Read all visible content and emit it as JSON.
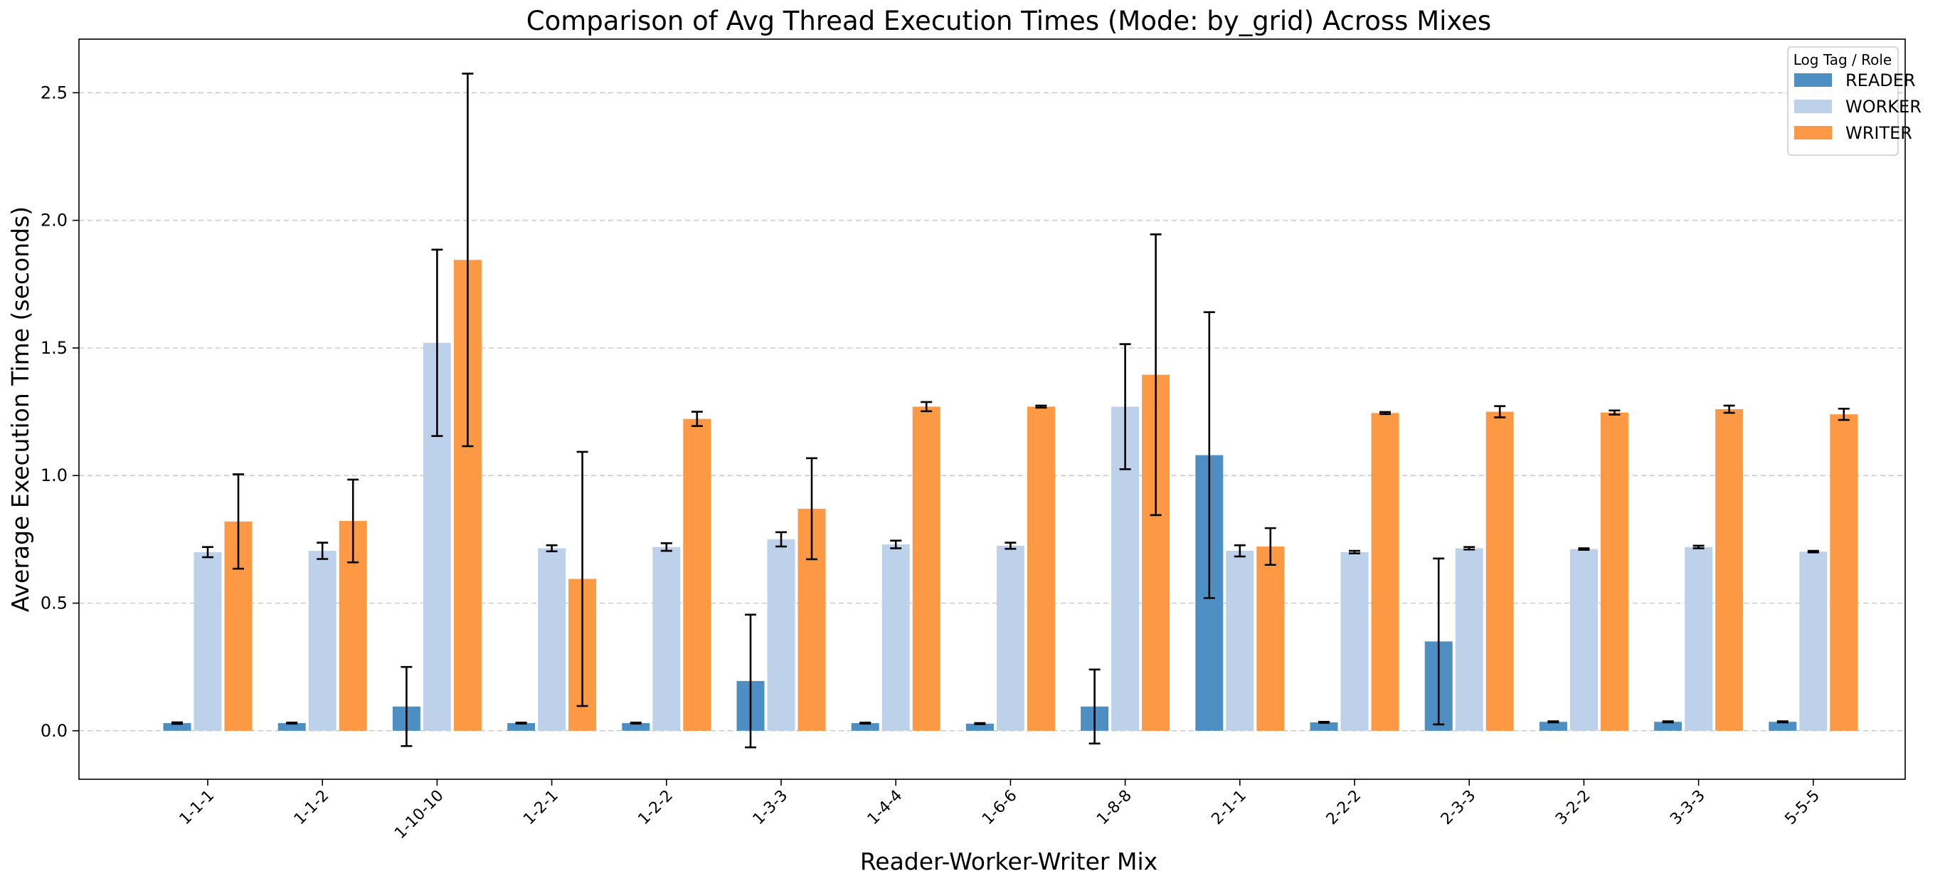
{
  "chart_data": {
    "type": "bar",
    "title": "Comparison of Avg Thread Execution Times (Mode: by_grid) Across Mixes",
    "xlabel": "Reader-Worker-Writer Mix",
    "ylabel": "Average Execution Time (seconds)",
    "ylim": [
      -0.19,
      2.71
    ],
    "yticks": [
      "0.0",
      "0.5",
      "1.0",
      "1.5",
      "2.0",
      "2.5"
    ],
    "grid": "y-dashed",
    "legend": {
      "title": "Log Tag / Role",
      "placement": "top-right"
    },
    "categories": [
      "1-1-1",
      "1-1-2",
      "1-10-10",
      "1-2-1",
      "1-2-2",
      "1-3-3",
      "1-4-4",
      "1-6-6",
      "1-8-8",
      "2-1-1",
      "2-2-2",
      "2-3-3",
      "3-2-2",
      "3-3-3",
      "5-5-5"
    ],
    "series": [
      {
        "name": "READER",
        "color": "#4e8fc3",
        "values": [
          0.03,
          0.03,
          0.095,
          0.03,
          0.03,
          0.195,
          0.03,
          0.028,
          0.095,
          1.08,
          0.033,
          0.35,
          0.035,
          0.035,
          0.035
        ],
        "errors": [
          0.003,
          0.002,
          0.155,
          0.002,
          0.002,
          0.26,
          0.002,
          0.002,
          0.145,
          0.56,
          0.002,
          0.325,
          0.002,
          0.002,
          0.002
        ]
      },
      {
        "name": "WORKER",
        "color": "#bdd2ea",
        "values": [
          0.7,
          0.705,
          1.52,
          0.715,
          0.72,
          0.75,
          0.73,
          0.725,
          1.27,
          0.705,
          0.7,
          0.715,
          0.712,
          0.72,
          0.702
        ],
        "errors": [
          0.02,
          0.032,
          0.365,
          0.012,
          0.015,
          0.028,
          0.015,
          0.012,
          0.245,
          0.022,
          0.005,
          0.005,
          0.003,
          0.005,
          0.003
        ]
      },
      {
        "name": "WRITER",
        "color": "#fd9844",
        "values": [
          0.82,
          0.822,
          1.845,
          0.595,
          1.222,
          0.87,
          1.27,
          1.27,
          1.395,
          0.722,
          1.245,
          1.25,
          1.247,
          1.26,
          1.24
        ],
        "errors": [
          0.185,
          0.162,
          0.73,
          0.498,
          0.028,
          0.198,
          0.018,
          0.004,
          0.55,
          0.072,
          0.004,
          0.022,
          0.008,
          0.014,
          0.022
        ]
      }
    ]
  }
}
